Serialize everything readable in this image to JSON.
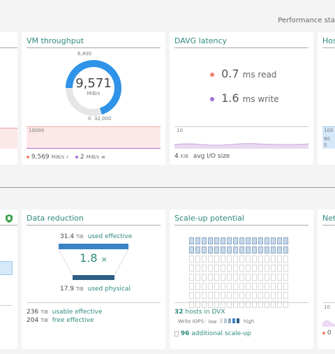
{
  "page": {
    "title": "Performance sta"
  },
  "vm_throughput": {
    "title": "VM throughput",
    "gauge": {
      "top_label": "6,400",
      "value": "9,571",
      "unit": "MiB/s",
      "min_label": "0",
      "max_label": "32,000",
      "fraction": 0.3
    },
    "chart_top_label": "10000",
    "legend": [
      {
        "value": "9,569",
        "unit": "MiB/s",
        "label": "r",
        "color": "#f0826b"
      },
      {
        "value": "2",
        "unit": "MiB/s",
        "label": "w",
        "color": "#a46fd8"
      }
    ]
  },
  "davg_latency": {
    "title": "DAVG latency",
    "read": {
      "value": "0.7",
      "label": "ms read",
      "color": "#f0826b"
    },
    "write": {
      "value": "1.6",
      "label": "ms write",
      "color": "#a46fd8"
    },
    "chart_top_label": "10",
    "io_value": "4",
    "io_unit": "KiB",
    "io_label": "avg I/O size"
  },
  "right_top": {
    "title": "Hos",
    "labels": [
      "100",
      "80",
      "0"
    ]
  },
  "data_reduction": {
    "title": "Data reduction",
    "used_effective_value": "31.4",
    "used_effective_unit": "TiB",
    "used_effective_label": "used effective",
    "ratio": "1.8",
    "ratio_suffix": "×",
    "used_physical_value": "17.9",
    "used_physical_unit": "TiB",
    "used_physical_label": "used physical",
    "usable_value": "236",
    "usable_unit": "TiB",
    "usable_label": "usable effective",
    "free_value": "204",
    "free_unit": "TiB",
    "free_label": "free effective"
  },
  "scale_up": {
    "title": "Scale-up potential",
    "hosts_count": "32",
    "hosts_label": "hosts in DVX",
    "iops_label": "Write IOPS:",
    "iops_low": "low",
    "iops_high": "high",
    "additional_value": "96",
    "additional_label": "additional scale-up"
  },
  "right_bottom": {
    "title": "Netw",
    "label": "10",
    "legend_value": "0",
    "legend_color": "#f0826b"
  },
  "colors": {
    "accent": "#2f8a7e",
    "blue": "#2f93e8",
    "navy": "#2f5e85",
    "read": "#f0826b",
    "write": "#a46fd8"
  }
}
